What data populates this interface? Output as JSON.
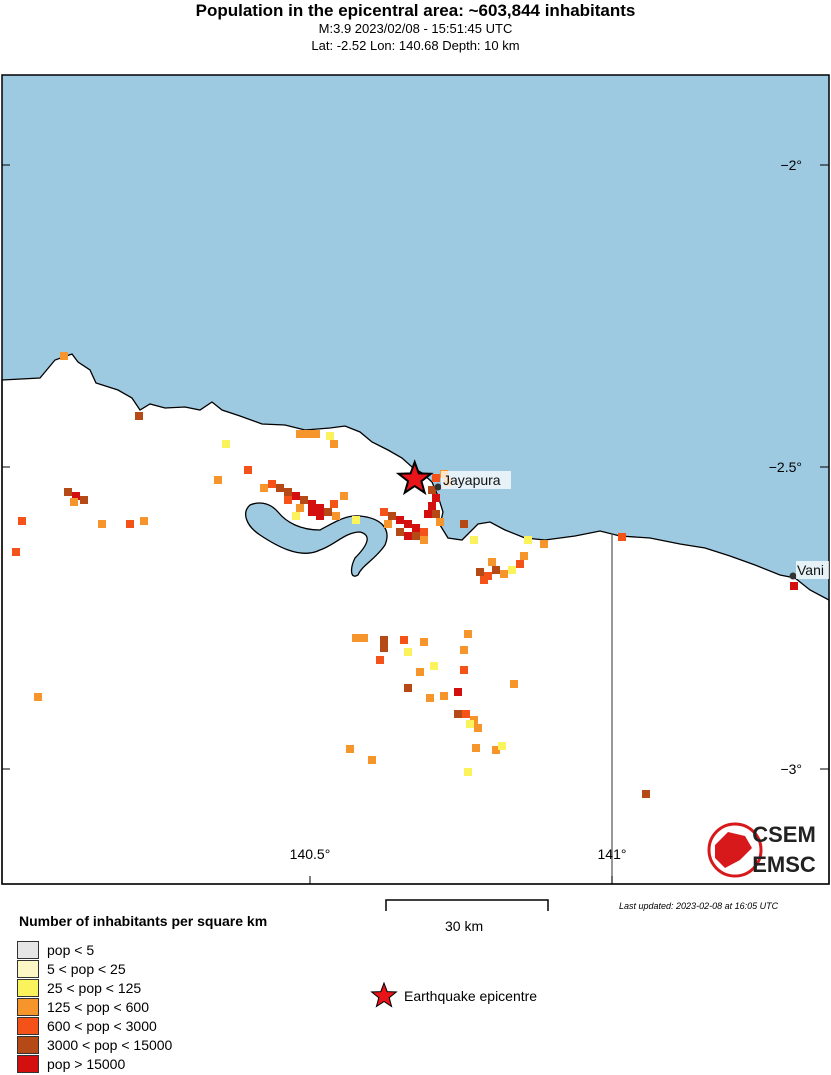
{
  "header": {
    "title": "Population in the epicentral area: ~603,844 inhabitants",
    "event": "M:3.9 2023/02/08 - 15:51:45 UTC",
    "location": "Lat: -2.52 Lon: 140.68 Depth: 10 km"
  },
  "map": {
    "sea_color": "#9ecae1",
    "land_color": "#ffffff",
    "lat_ticks": [
      "−2°",
      "−2.5°",
      "−3°"
    ],
    "lon_ticks": [
      "140.5°",
      "141°"
    ],
    "cities": [
      "Jayapura",
      "Vani"
    ],
    "epicentre": {
      "lat": -2.52,
      "lon": 140.68
    },
    "logo": {
      "top": "CSEM",
      "bottom": "EMSC",
      "color": "#d7191c"
    }
  },
  "legend": {
    "title": "Number of inhabitants per square km",
    "items": [
      {
        "label": "pop < 5",
        "color": "#e6e6e6"
      },
      {
        "label": "5 < pop < 25",
        "color": "#fdf7c6"
      },
      {
        "label": "25 < pop < 125",
        "color": "#fbf35b"
      },
      {
        "label": "125 < pop < 600",
        "color": "#f7952d"
      },
      {
        "label": "600 < pop < 3000",
        "color": "#f55219"
      },
      {
        "label": "3000 < pop < 15000",
        "color": "#b54a17"
      },
      {
        "label": "pop > 15000",
        "color": "#d40f0f"
      }
    ],
    "epicentre_label": "Earthquake epicentre"
  },
  "scale_bar": "30 km",
  "last_updated": "Last updated: 2023-02-08 at 16:05 UTC"
}
